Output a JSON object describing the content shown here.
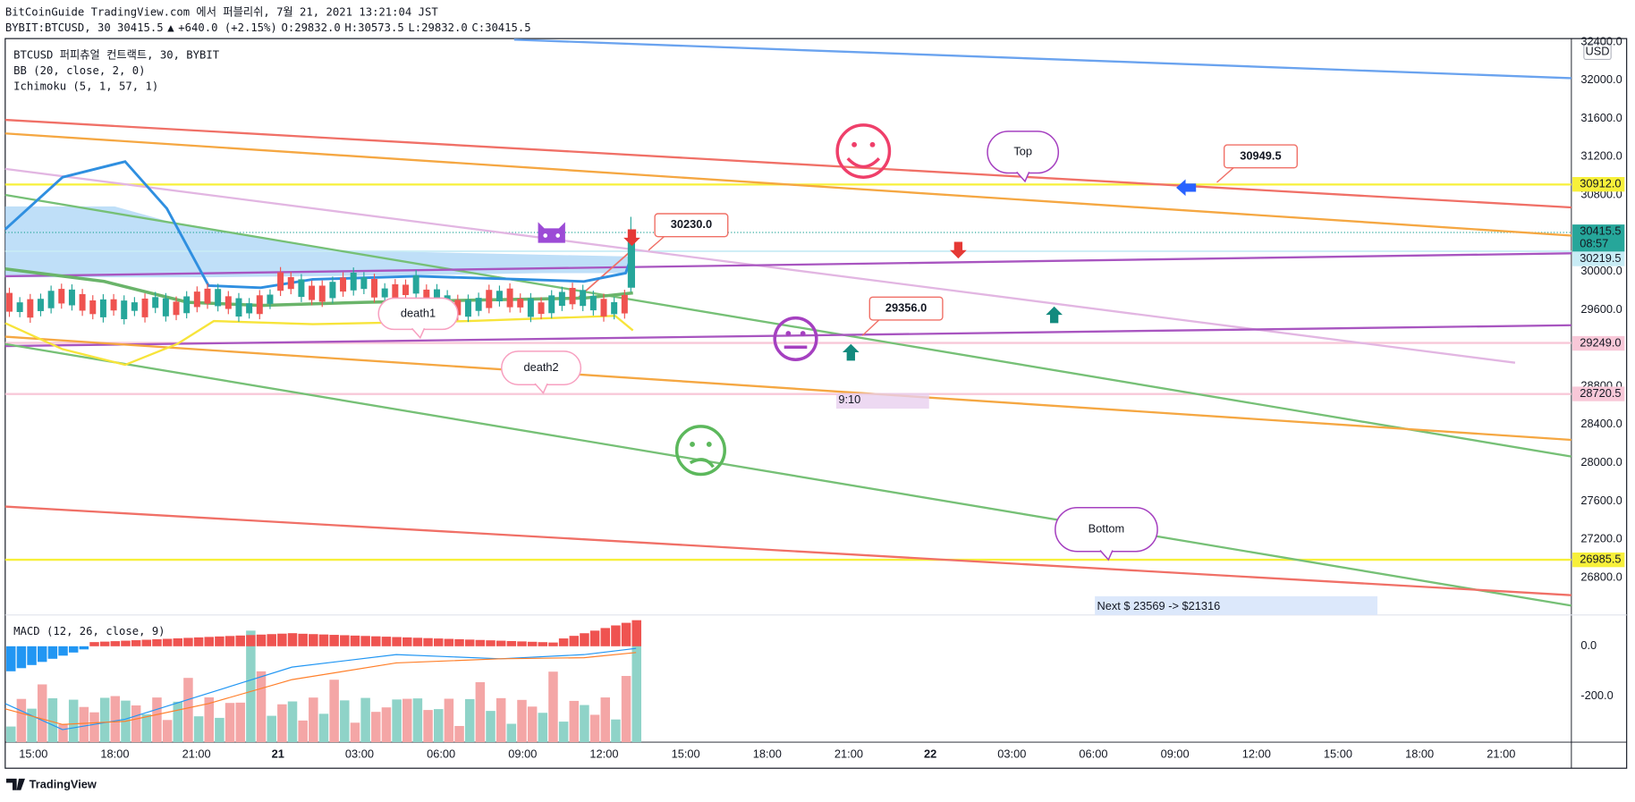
{
  "header": {
    "line1": "BitCoinGuide TradingView.com 에서 퍼블리쉬, 7월 21, 2021 13:21:04 JST",
    "line2": [
      {
        "text": "BYBIT:BTCUSD, 30 30415.5",
        "color": "#131722"
      },
      {
        "text": "▲",
        "color": "#26a69a"
      },
      {
        "text": "+640.0 (+2.15%)",
        "color": "#131722"
      },
      {
        "text": "O:",
        "color": "#131722"
      },
      {
        "text": "29832.0",
        "color": "#26a69a"
      },
      {
        "text": "H:",
        "color": "#131722"
      },
      {
        "text": "30573.5",
        "color": "#26a69a"
      },
      {
        "text": "L:",
        "color": "#131722"
      },
      {
        "text": "29832.0",
        "color": "#26a69a"
      },
      {
        "text": "C:",
        "color": "#131722"
      },
      {
        "text": "30415.5",
        "color": "#26a69a"
      }
    ]
  },
  "legend": [
    "BTCUSD 퍼피츄얼 컨트랙트, 30, BYBIT",
    "BB (20, close, 2, 0)",
    "Ichimoku (5, 1, 57, 1)"
  ],
  "macd_legend": "MACD (12, 26, close, 9)",
  "price_axis": {
    "currency": "USD",
    "labels": [
      "32400.0",
      "32000.0",
      "31600.0",
      "31200.0",
      "30800.0",
      "30000.0",
      "29600.0",
      "28800.0",
      "28400.0",
      "28000.0",
      "27600.0",
      "27200.0",
      "26800.0"
    ]
  },
  "price_tags": [
    {
      "text": "30912.0",
      "color": "#f7f03a",
      "ink": "#131722"
    },
    {
      "text": "30415.5",
      "sub": "08:57",
      "color": "#26a69a",
      "ink": "#ffffff"
    },
    {
      "text": "30219.5",
      "color": "#c8ecf5",
      "ink": "#131722"
    },
    {
      "text": "29249.0",
      "color": "#f8c8d8",
      "ink": "#131722"
    },
    {
      "text": "28720.5",
      "color": "#f8c8d8",
      "ink": "#131722"
    },
    {
      "text": "26985.5",
      "color": "#f7f03a",
      "ink": "#131722"
    }
  ],
  "macd_axis": [
    "0.0",
    "-200.0"
  ],
  "time_axis": [
    "15:00",
    "18:00",
    "21:00",
    "21",
    "03:00",
    "06:00",
    "09:00",
    "12:00",
    "15:00",
    "18:00",
    "21:00",
    "22",
    "03:00",
    "06:00",
    "09:00",
    "12:00",
    "15:00",
    "18:00",
    "21:00"
  ],
  "annotations": {
    "callouts": [
      "30230.0",
      "30949.5",
      "29356.0"
    ],
    "bubbles": [
      "Top",
      "Bottom",
      "death1",
      "death2"
    ],
    "range_label": "9:10",
    "note": "Next $ 23569 -> $21316"
  },
  "footer": "TradingView"
}
